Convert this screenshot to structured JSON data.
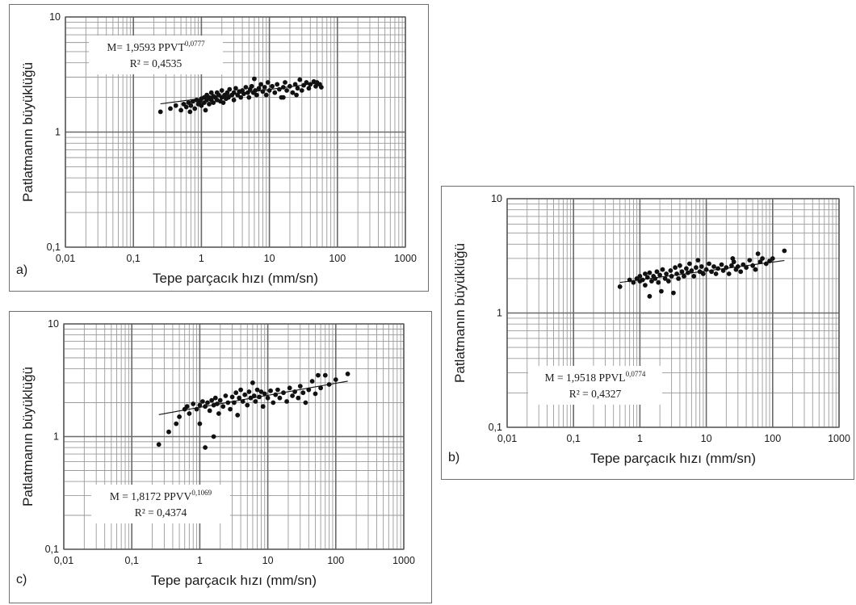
{
  "chart_data": [
    {
      "id": "a",
      "type": "scatter",
      "panel_label": "a)",
      "xlabel": "Tepe parçacık hızı (mm/sn)",
      "ylabel": "Patlatmanın büyüklüğü",
      "x_scale": "log",
      "y_scale": "log",
      "xlim": [
        0.01,
        1000
      ],
      "ylim": [
        0.1,
        10
      ],
      "x_ticks": [
        "0,01",
        "0,1",
        "1",
        "10",
        "100",
        "1000"
      ],
      "y_ticks": [
        "0,1",
        "1",
        "10"
      ],
      "grid": true,
      "equation": {
        "main": "M= 1,9593 PPVT",
        "exponent": "0,0777",
        "r2": "R² = 0,4535"
      },
      "trendline": {
        "coef": 1.9593,
        "exp": 0.0777,
        "x_range": [
          0.25,
          58
        ]
      },
      "points": [
        [
          0.25,
          1.5
        ],
        [
          0.35,
          1.6
        ],
        [
          0.42,
          1.7
        ],
        [
          0.5,
          1.55
        ],
        [
          0.55,
          1.75
        ],
        [
          0.6,
          1.65
        ],
        [
          0.65,
          1.8
        ],
        [
          0.7,
          1.7
        ],
        [
          0.75,
          1.85
        ],
        [
          0.8,
          1.6
        ],
        [
          0.85,
          1.9
        ],
        [
          0.9,
          1.75
        ],
        [
          0.95,
          1.85
        ],
        [
          1.0,
          1.7
        ],
        [
          1.0,
          1.95
        ],
        [
          1.1,
          2.0
        ],
        [
          1.1,
          1.8
        ],
        [
          1.2,
          1.9
        ],
        [
          1.2,
          2.1
        ],
        [
          1.3,
          1.75
        ],
        [
          1.3,
          2.0
        ],
        [
          1.4,
          1.9
        ],
        [
          1.4,
          2.2
        ],
        [
          1.5,
          1.8
        ],
        [
          1.5,
          2.05
        ],
        [
          1.6,
          2.0
        ],
        [
          1.7,
          1.9
        ],
        [
          1.7,
          2.2
        ],
        [
          1.8,
          2.1
        ],
        [
          1.9,
          1.85
        ],
        [
          2.0,
          2.0
        ],
        [
          2.0,
          2.3
        ],
        [
          2.2,
          2.1
        ],
        [
          2.3,
          1.95
        ],
        [
          2.4,
          2.2
        ],
        [
          2.5,
          2.0
        ],
        [
          2.6,
          2.35
        ],
        [
          2.8,
          2.1
        ],
        [
          3.0,
          2.2
        ],
        [
          3.0,
          1.9
        ],
        [
          3.2,
          2.4
        ],
        [
          3.4,
          2.1
        ],
        [
          3.6,
          2.25
        ],
        [
          3.8,
          2.0
        ],
        [
          4.0,
          2.3
        ],
        [
          4.2,
          2.15
        ],
        [
          4.5,
          2.45
        ],
        [
          4.8,
          2.2
        ],
        [
          5.0,
          2.0
        ],
        [
          5.2,
          2.35
        ],
        [
          5.5,
          2.5
        ],
        [
          5.8,
          2.2
        ],
        [
          6.0,
          2.9
        ],
        [
          6.2,
          2.3
        ],
        [
          6.5,
          2.1
        ],
        [
          7.0,
          2.4
        ],
        [
          7.5,
          2.6
        ],
        [
          8.0,
          2.25
        ],
        [
          8.5,
          2.45
        ],
        [
          9.0,
          2.1
        ],
        [
          10,
          2.3
        ],
        [
          11,
          2.5
        ],
        [
          12,
          2.2
        ],
        [
          13,
          2.6
        ],
        [
          14,
          2.35
        ],
        [
          15,
          2.0
        ],
        [
          16,
          2.45
        ],
        [
          17,
          2.7
        ],
        [
          18,
          2.3
        ],
        [
          20,
          2.5
        ],
        [
          22,
          2.2
        ],
        [
          24,
          2.6
        ],
        [
          26,
          2.4
        ],
        [
          28,
          2.85
        ],
        [
          30,
          2.3
        ],
        [
          32,
          2.55
        ],
        [
          35,
          2.7
        ],
        [
          38,
          2.4
        ],
        [
          40,
          2.6
        ],
        [
          45,
          2.75
        ],
        [
          48,
          2.5
        ],
        [
          50,
          2.7
        ],
        [
          55,
          2.6
        ],
        [
          58,
          2.45
        ],
        [
          2.1,
          1.8
        ],
        [
          1.15,
          1.55
        ],
        [
          0.68,
          1.5
        ],
        [
          9.5,
          2.7
        ],
        [
          16,
          2.0
        ],
        [
          25,
          2.1
        ]
      ]
    },
    {
      "id": "b",
      "type": "scatter",
      "panel_label": "b)",
      "xlabel": "Tepe parçacık hızı (mm/sn)",
      "ylabel": "Patlatmanın büyüklüğü",
      "x_scale": "log",
      "y_scale": "log",
      "xlim": [
        0.01,
        1000
      ],
      "ylim": [
        0.1,
        10
      ],
      "x_ticks": [
        "0,01",
        "0,1",
        "1",
        "10",
        "100",
        "1000"
      ],
      "y_ticks": [
        "0,1",
        "1",
        "10"
      ],
      "grid": true,
      "equation": {
        "main": "M = 1,9518 PPVL",
        "exponent": "0,0774",
        "r2": "R² = 0,4327"
      },
      "trendline": {
        "coef": 1.9518,
        "exp": 0.0774,
        "x_range": [
          0.5,
          150
        ]
      },
      "points": [
        [
          0.5,
          1.7
        ],
        [
          0.7,
          1.95
        ],
        [
          0.8,
          1.85
        ],
        [
          0.9,
          2.0
        ],
        [
          1.0,
          1.9
        ],
        [
          1.0,
          2.1
        ],
        [
          1.1,
          1.95
        ],
        [
          1.2,
          2.2
        ],
        [
          1.2,
          1.75
        ],
        [
          1.3,
          2.05
        ],
        [
          1.4,
          1.4
        ],
        [
          1.4,
          2.25
        ],
        [
          1.5,
          1.9
        ],
        [
          1.6,
          2.1
        ],
        [
          1.7,
          2.0
        ],
        [
          1.8,
          2.3
        ],
        [
          1.9,
          1.85
        ],
        [
          2.0,
          2.15
        ],
        [
          2.1,
          1.55
        ],
        [
          2.2,
          2.4
        ],
        [
          2.4,
          2.0
        ],
        [
          2.5,
          2.2
        ],
        [
          2.7,
          1.9
        ],
        [
          2.9,
          2.35
        ],
        [
          3.0,
          2.1
        ],
        [
          3.2,
          1.5
        ],
        [
          3.4,
          2.5
        ],
        [
          3.6,
          2.2
        ],
        [
          3.8,
          2.0
        ],
        [
          4.0,
          2.6
        ],
        [
          4.3,
          2.3
        ],
        [
          4.6,
          2.1
        ],
        [
          5.0,
          2.45
        ],
        [
          5.3,
          2.25
        ],
        [
          5.6,
          2.7
        ],
        [
          6.0,
          2.35
        ],
        [
          6.5,
          2.1
        ],
        [
          7.0,
          2.5
        ],
        [
          7.5,
          2.9
        ],
        [
          8.0,
          2.3
        ],
        [
          8.5,
          2.55
        ],
        [
          9.0,
          2.2
        ],
        [
          10,
          2.4
        ],
        [
          11,
          2.7
        ],
        [
          12,
          2.3
        ],
        [
          13,
          2.55
        ],
        [
          14,
          2.2
        ],
        [
          15,
          2.45
        ],
        [
          17,
          2.65
        ],
        [
          18,
          2.35
        ],
        [
          20,
          2.5
        ],
        [
          22,
          2.2
        ],
        [
          24,
          2.6
        ],
        [
          26,
          2.8
        ],
        [
          28,
          2.4
        ],
        [
          30,
          2.55
        ],
        [
          33,
          2.3
        ],
        [
          36,
          2.65
        ],
        [
          40,
          2.5
        ],
        [
          45,
          2.9
        ],
        [
          50,
          2.6
        ],
        [
          55,
          2.4
        ],
        [
          60,
          3.3
        ],
        [
          65,
          2.8
        ],
        [
          70,
          3.0
        ],
        [
          80,
          2.7
        ],
        [
          90,
          2.85
        ],
        [
          100,
          3.0
        ],
        [
          150,
          3.5
        ],
        [
          25,
          3.0
        ]
      ]
    },
    {
      "id": "c",
      "type": "scatter",
      "panel_label": "c)",
      "xlabel": "Tepe parçacık hızı (mm/sn)",
      "ylabel": "Patlatmanın büyüklüğü",
      "x_scale": "log",
      "y_scale": "log",
      "xlim": [
        0.01,
        1000
      ],
      "ylim": [
        0.1,
        10
      ],
      "x_ticks": [
        "0,01",
        "0,1",
        "1",
        "10",
        "100",
        "1000"
      ],
      "y_ticks": [
        "0,1",
        "1",
        "10"
      ],
      "grid": true,
      "equation": {
        "main": "M = 1,8172 PPVV",
        "exponent": "0,1069",
        "r2": "R² = 0,4374"
      },
      "trendline": {
        "coef": 1.8172,
        "exp": 0.1069,
        "x_range": [
          0.25,
          150
        ]
      },
      "points": [
        [
          0.25,
          0.85
        ],
        [
          0.35,
          1.1
        ],
        [
          0.45,
          1.3
        ],
        [
          0.5,
          1.5
        ],
        [
          0.6,
          1.75
        ],
        [
          0.65,
          1.85
        ],
        [
          0.7,
          1.6
        ],
        [
          0.8,
          1.95
        ],
        [
          0.9,
          1.75
        ],
        [
          1.0,
          1.9
        ],
        [
          1.0,
          1.3
        ],
        [
          1.1,
          2.05
        ],
        [
          1.2,
          0.8
        ],
        [
          1.2,
          1.85
        ],
        [
          1.3,
          2.0
        ],
        [
          1.4,
          1.7
        ],
        [
          1.5,
          2.1
        ],
        [
          1.6,
          1.0
        ],
        [
          1.6,
          1.9
        ],
        [
          1.7,
          2.2
        ],
        [
          1.8,
          1.95
        ],
        [
          1.9,
          1.6
        ],
        [
          2.0,
          2.1
        ],
        [
          2.2,
          1.85
        ],
        [
          2.4,
          2.3
        ],
        [
          2.6,
          2.0
        ],
        [
          2.8,
          1.75
        ],
        [
          3.0,
          2.25
        ],
        [
          3.2,
          2.0
        ],
        [
          3.4,
          2.45
        ],
        [
          3.6,
          1.55
        ],
        [
          3.8,
          2.2
        ],
        [
          4.0,
          2.6
        ],
        [
          4.3,
          2.05
        ],
        [
          4.6,
          2.35
        ],
        [
          5.0,
          1.9
        ],
        [
          5.3,
          2.5
        ],
        [
          5.6,
          2.2
        ],
        [
          6.0,
          3.0
        ],
        [
          6.3,
          2.3
        ],
        [
          6.6,
          2.05
        ],
        [
          7.0,
          2.6
        ],
        [
          7.5,
          2.25
        ],
        [
          8.0,
          2.5
        ],
        [
          8.5,
          1.85
        ],
        [
          9.0,
          2.4
        ],
        [
          10,
          2.2
        ],
        [
          11,
          2.55
        ],
        [
          12,
          2.0
        ],
        [
          13,
          2.35
        ],
        [
          14,
          2.6
        ],
        [
          15,
          2.2
        ],
        [
          17,
          2.45
        ],
        [
          19,
          2.05
        ],
        [
          21,
          2.7
        ],
        [
          23,
          2.3
        ],
        [
          25,
          2.5
        ],
        [
          28,
          2.2
        ],
        [
          30,
          2.8
        ],
        [
          33,
          2.45
        ],
        [
          36,
          2.0
        ],
        [
          40,
          2.6
        ],
        [
          45,
          3.1
        ],
        [
          50,
          2.4
        ],
        [
          55,
          3.5
        ],
        [
          60,
          2.7
        ],
        [
          70,
          3.5
        ],
        [
          80,
          2.9
        ],
        [
          100,
          3.2
        ],
        [
          150,
          3.6
        ]
      ]
    }
  ]
}
